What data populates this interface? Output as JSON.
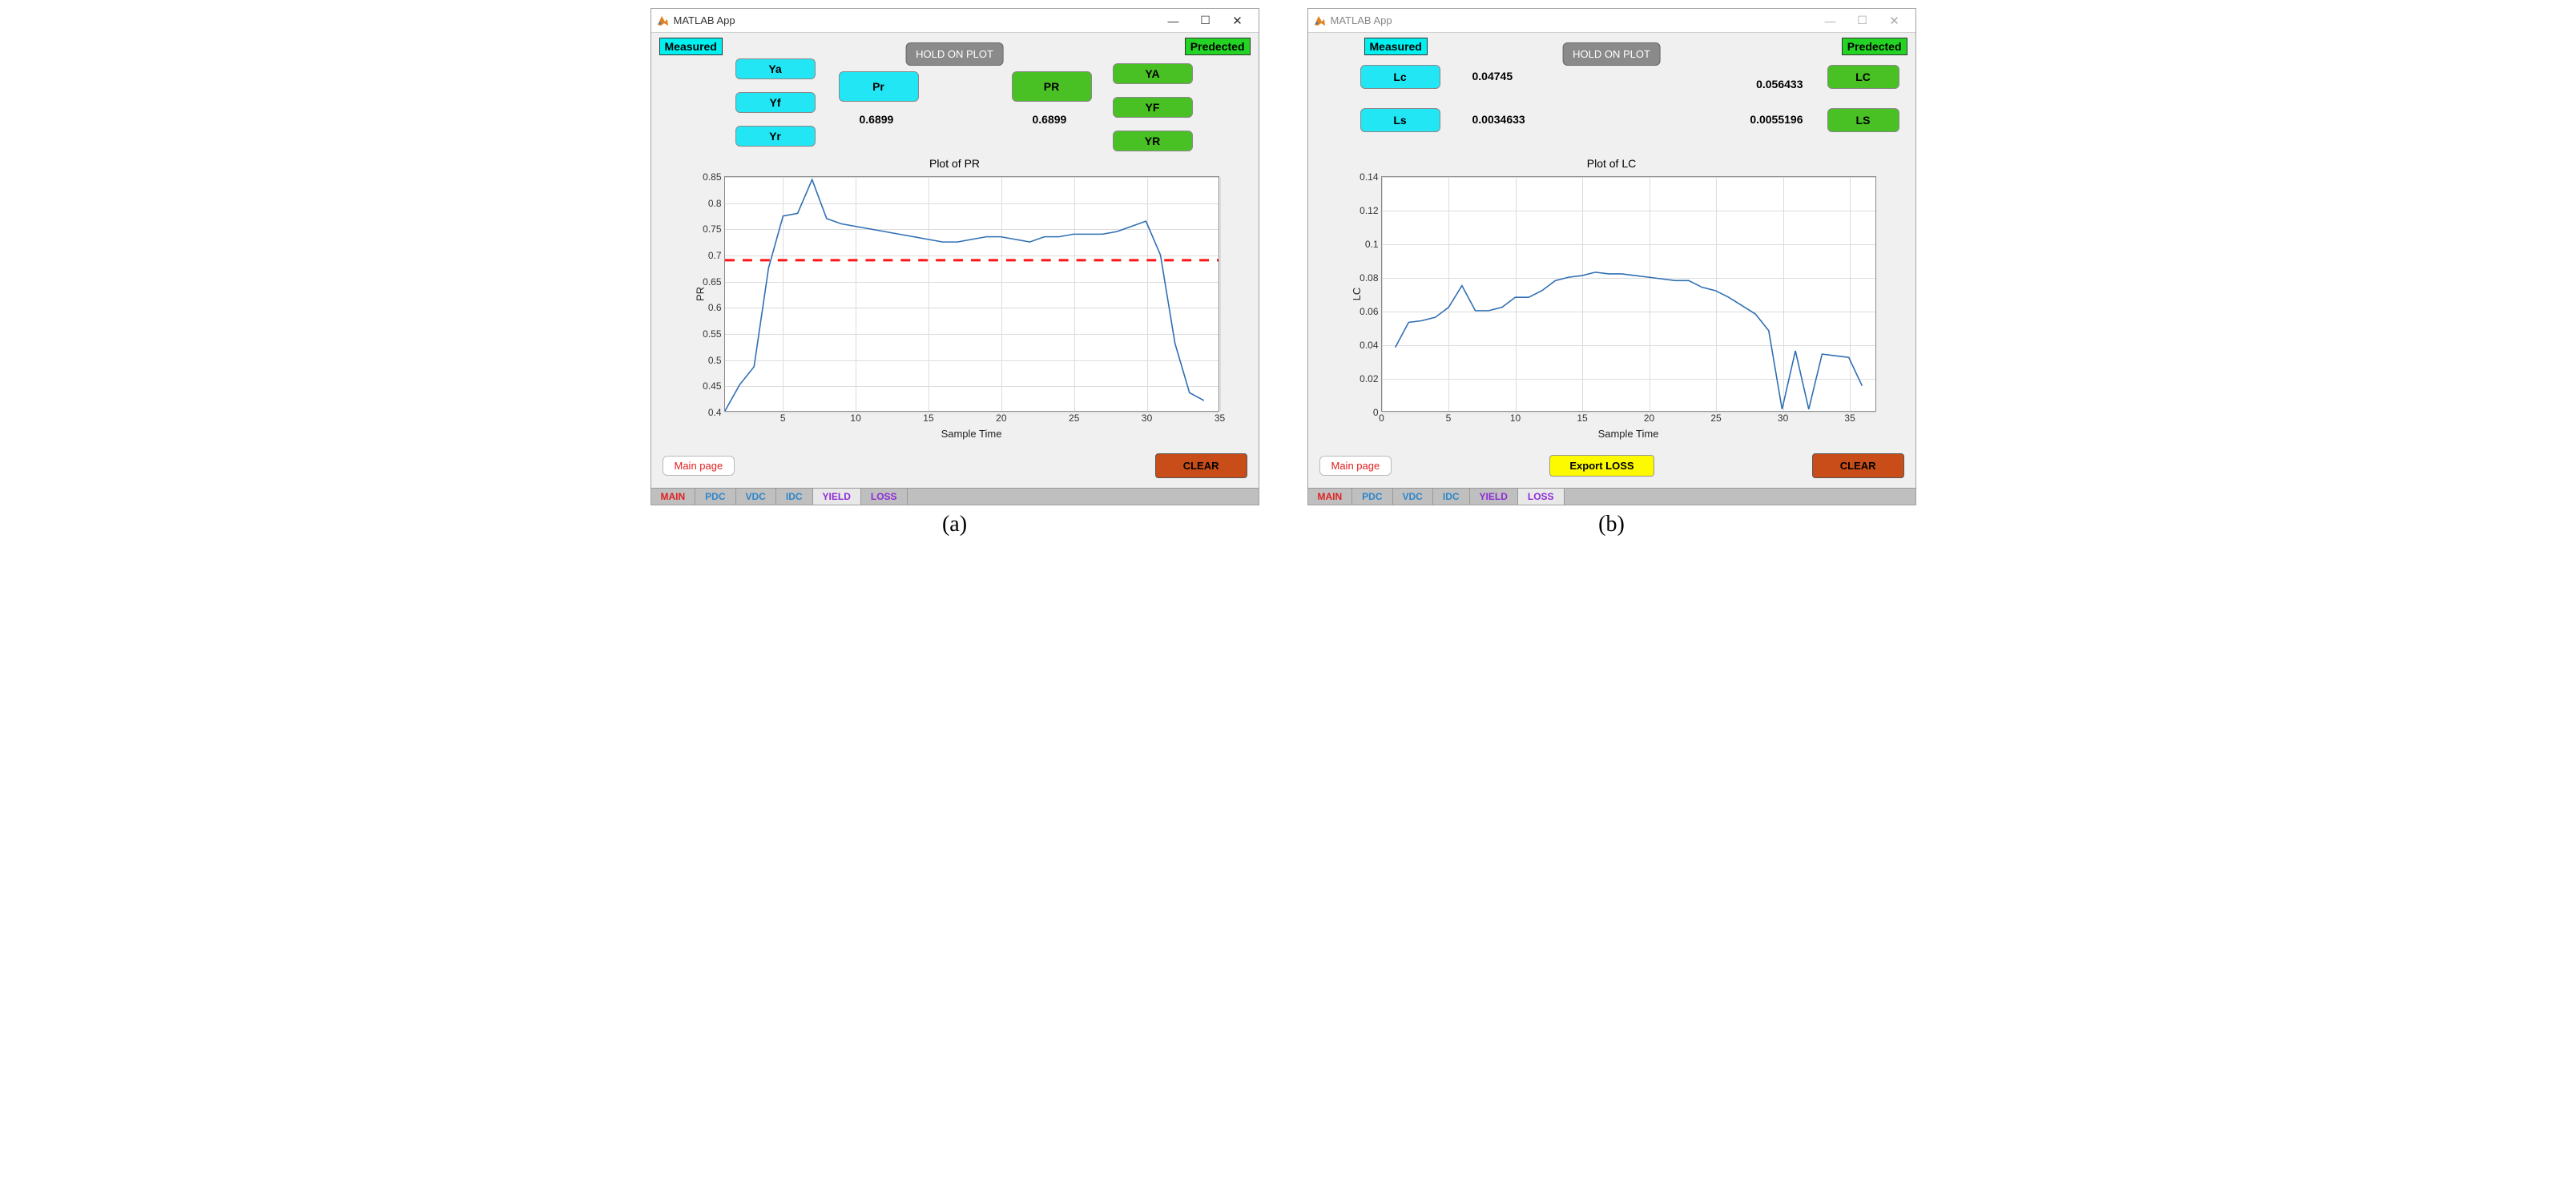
{
  "titlebar": {
    "title": "MATLAB App"
  },
  "captions": {
    "a": "(a)",
    "b": "(b)"
  },
  "common": {
    "measured_label": "Measured",
    "predected_label": "Predected",
    "hold_on_plot": "HOLD ON PLOT",
    "main_page": "Main page",
    "clear": "CLEAR"
  },
  "tabs": {
    "items": [
      "MAIN",
      "PDC",
      "VDC",
      "IDC",
      "YIELD",
      "LOSS"
    ],
    "colors": [
      "#e02020",
      "#2e86c9",
      "#2e86c9",
      "#2e86c9",
      "#8e2bd6",
      "#8e2bd6"
    ]
  },
  "panelA": {
    "active_tab_index": 4,
    "left_buttons": {
      "ya": "Ya",
      "yf": "Yf",
      "yr": "Yr"
    },
    "pr_btn": "Pr",
    "pr_val": "0.6899",
    "PR_btn": "PR",
    "PR_val": "0.6899",
    "right_buttons": {
      "ya": "YA",
      "yf": "YF",
      "yr": "YR"
    },
    "chart": {
      "title": "Plot of PR",
      "xlabel": "Sample Time",
      "ylabel": "PR",
      "xlim": [
        1,
        35
      ],
      "ylim": [
        0.4,
        0.85
      ],
      "xticks": [
        5,
        10,
        15,
        20,
        25,
        30,
        35
      ],
      "yticks": [
        0.4,
        0.45,
        0.5,
        0.55,
        0.6,
        0.65,
        0.7,
        0.75,
        0.8,
        0.85
      ],
      "line_color": "#2f6fb3",
      "dashed_color": "#ff1414",
      "grid_color": "#dcdcdc",
      "bg": "#ffffff",
      "series_x": [
        1,
        2,
        3,
        4,
        5,
        6,
        7,
        8,
        9,
        10,
        11,
        12,
        13,
        14,
        15,
        16,
        17,
        18,
        19,
        20,
        21,
        22,
        23,
        24,
        25,
        26,
        27,
        28,
        29,
        30,
        31,
        32,
        33,
        34
      ],
      "series_y": [
        0.4,
        0.45,
        0.485,
        0.675,
        0.775,
        0.78,
        0.845,
        0.77,
        0.76,
        0.755,
        0.75,
        0.745,
        0.74,
        0.735,
        0.73,
        0.725,
        0.725,
        0.73,
        0.735,
        0.735,
        0.73,
        0.725,
        0.735,
        0.735,
        0.74,
        0.74,
        0.74,
        0.745,
        0.755,
        0.765,
        0.7,
        0.53,
        0.435,
        0.42
      ],
      "dashed_y": 0.6899
    }
  },
  "panelB": {
    "active_tab_index": 5,
    "export_label": "Export LOSS",
    "lc_btn": "Lc",
    "ls_btn": "Ls",
    "lc_val": "0.04745",
    "ls_val": "0.0034633",
    "LC_btn": "LC",
    "LS_btn": "LS",
    "LC_val": "0.056433",
    "LS_val": "0.0055196",
    "chart": {
      "title": "Plot of LC",
      "xlabel": "Sample Time",
      "ylabel": "LC",
      "xlim": [
        0,
        37
      ],
      "ylim": [
        0,
        0.14
      ],
      "xticks": [
        0,
        5,
        10,
        15,
        20,
        25,
        30,
        35
      ],
      "yticks": [
        0,
        0.02,
        0.04,
        0.06,
        0.08,
        0.1,
        0.12,
        0.14
      ],
      "line_color": "#2f6fb3",
      "grid_color": "#dcdcdc",
      "bg": "#ffffff",
      "series_x": [
        1,
        2,
        3,
        4,
        5,
        6,
        7,
        8,
        9,
        10,
        11,
        12,
        13,
        14,
        15,
        16,
        17,
        18,
        19,
        20,
        21,
        22,
        23,
        24,
        25,
        26,
        27,
        28,
        29,
        30,
        31,
        32,
        33,
        34,
        35,
        36
      ],
      "series_y": [
        0.038,
        0.053,
        0.054,
        0.056,
        0.062,
        0.075,
        0.06,
        0.06,
        0.062,
        0.068,
        0.068,
        0.072,
        0.078,
        0.08,
        0.081,
        0.083,
        0.082,
        0.082,
        0.081,
        0.08,
        0.079,
        0.078,
        0.078,
        0.074,
        0.072,
        0.068,
        0.063,
        0.058,
        0.048,
        0.001,
        0.036,
        0.001,
        0.034,
        0.033,
        0.032,
        0.015
      ]
    }
  }
}
